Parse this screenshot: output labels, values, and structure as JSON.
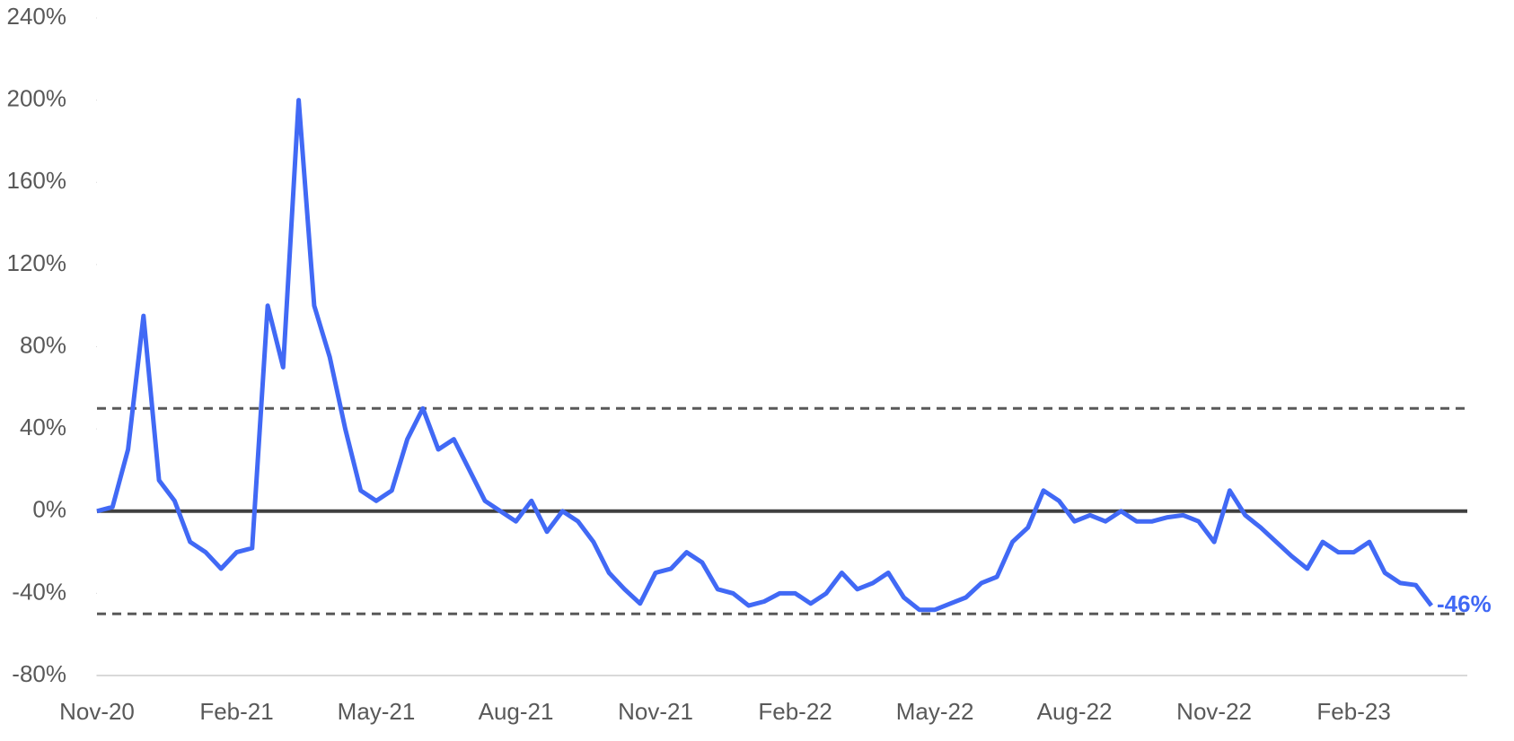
{
  "chart_data": {
    "type": "line",
    "categories": [
      "Nov-20",
      null,
      null,
      null,
      null,
      null,
      null,
      null,
      null,
      "Feb-21",
      null,
      null,
      null,
      null,
      null,
      null,
      null,
      null,
      "May-21",
      null,
      null,
      null,
      null,
      null,
      null,
      null,
      null,
      "Aug-21",
      null,
      null,
      null,
      null,
      null,
      null,
      null,
      null,
      "Nov-21",
      null,
      null,
      null,
      null,
      null,
      null,
      null,
      null,
      "Feb-22",
      null,
      null,
      null,
      null,
      null,
      null,
      null,
      null,
      "May-22",
      null,
      null,
      null,
      null,
      null,
      null,
      null,
      null,
      "Aug-22",
      null,
      null,
      null,
      null,
      null,
      null,
      null,
      null,
      "Nov-22",
      null,
      null,
      null,
      null,
      null,
      null,
      null,
      null,
      "Feb-23",
      null,
      null,
      null,
      null,
      null
    ],
    "series": [
      {
        "color": "#4169f5",
        "values": [
          0,
          2,
          30,
          95,
          15,
          5,
          -15,
          -20,
          -28,
          -20,
          -18,
          100,
          70,
          200,
          100,
          75,
          40,
          10,
          5,
          10,
          35,
          50,
          30,
          35,
          20,
          5,
          0,
          -5,
          5,
          -10,
          0,
          -5,
          -15,
          -30,
          -38,
          -45,
          -30,
          -28,
          -20,
          -25,
          -38,
          -40,
          -46,
          -44,
          -40,
          -40,
          -45,
          -40,
          -30,
          -38,
          -35,
          -30,
          -42,
          -48,
          -48,
          -45,
          -42,
          -35,
          -32,
          -15,
          -8,
          10,
          5,
          -5,
          -2,
          -5,
          0,
          -5,
          -5,
          -3,
          -2,
          -5,
          -15,
          10,
          -2,
          -8,
          -15,
          -22,
          -28,
          -15,
          -20,
          -20,
          -15,
          -30,
          -35,
          -36,
          -46
        ],
        "value_labels": [
          null,
          null,
          null,
          null,
          null,
          null,
          null,
          null,
          null,
          null,
          null,
          null,
          null,
          null,
          null,
          null,
          null,
          null,
          null,
          null,
          null,
          null,
          null,
          null,
          null,
          null,
          null,
          null,
          null,
          null,
          null,
          null,
          null,
          null,
          null,
          null,
          null,
          null,
          null,
          null,
          null,
          null,
          null,
          null,
          null,
          null,
          null,
          null,
          null,
          null,
          null,
          null,
          null,
          null,
          null,
          null,
          null,
          null,
          null,
          null,
          null,
          null,
          null,
          null,
          null,
          null,
          null,
          null,
          null,
          null,
          null,
          null,
          null,
          null,
          null,
          null,
          null,
          null,
          null,
          null,
          null,
          null,
          null,
          null,
          null,
          null,
          "-46%"
        ]
      }
    ],
    "ylim": [
      -80,
      240
    ],
    "yticks": [
      {
        "value": -80,
        "label": "-80%"
      },
      {
        "value": -40,
        "label": "-40%"
      },
      {
        "value": 0,
        "label": "0%"
      },
      {
        "value": 40,
        "label": "40%"
      },
      {
        "value": 80,
        "label": "80%"
      },
      {
        "value": 120,
        "label": "120%"
      },
      {
        "value": 160,
        "label": "160%"
      },
      {
        "value": 200,
        "label": "200%"
      },
      {
        "value": 240,
        "label": "240%"
      }
    ],
    "reference_lines": [
      {
        "value": 50,
        "style": "dashed"
      },
      {
        "value": -50,
        "style": "dashed"
      },
      {
        "value": 0,
        "style": "solid"
      }
    ]
  }
}
